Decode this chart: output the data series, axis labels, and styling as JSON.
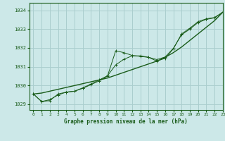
{
  "title": "Graphe pression niveau de la mer (hPa)",
  "bg_color": "#cce8e8",
  "grid_color": "#aacece",
  "line_color": "#1a5c1a",
  "xlim": [
    -0.5,
    23
  ],
  "ylim": [
    1028.7,
    1034.4
  ],
  "yticks": [
    1029,
    1030,
    1031,
    1032,
    1033,
    1034
  ],
  "xticks": [
    0,
    1,
    2,
    3,
    4,
    5,
    6,
    7,
    8,
    9,
    10,
    11,
    12,
    13,
    14,
    15,
    16,
    17,
    18,
    19,
    20,
    21,
    22,
    23
  ],
  "x": [
    0,
    1,
    2,
    3,
    4,
    5,
    6,
    7,
    8,
    9,
    10,
    11,
    12,
    13,
    14,
    15,
    16,
    17,
    18,
    19,
    20,
    21,
    22,
    23
  ],
  "y_main": [
    1029.55,
    1029.15,
    1029.2,
    1029.55,
    1029.65,
    1029.7,
    1029.85,
    1030.05,
    1030.25,
    1030.5,
    1031.85,
    1031.75,
    1031.6,
    1031.55,
    1031.5,
    1031.3,
    1031.45,
    1031.95,
    1032.75,
    1033.05,
    1033.4,
    1033.55,
    1033.62,
    1033.9
  ],
  "y_trend": [
    1029.55,
    1029.6,
    1029.7,
    1029.8,
    1029.9,
    1030.0,
    1030.1,
    1030.2,
    1030.3,
    1030.4,
    1030.55,
    1030.7,
    1030.85,
    1031.0,
    1031.15,
    1031.3,
    1031.5,
    1031.75,
    1032.05,
    1032.4,
    1032.75,
    1033.1,
    1033.45,
    1033.9
  ],
  "y_smooth": [
    1029.55,
    1029.15,
    1029.25,
    1029.5,
    1029.65,
    1029.7,
    1029.88,
    1030.08,
    1030.3,
    1030.52,
    1031.1,
    1031.4,
    1031.58,
    1031.58,
    1031.5,
    1031.38,
    1031.52,
    1031.98,
    1032.7,
    1033.0,
    1033.35,
    1033.52,
    1033.6,
    1033.9
  ]
}
